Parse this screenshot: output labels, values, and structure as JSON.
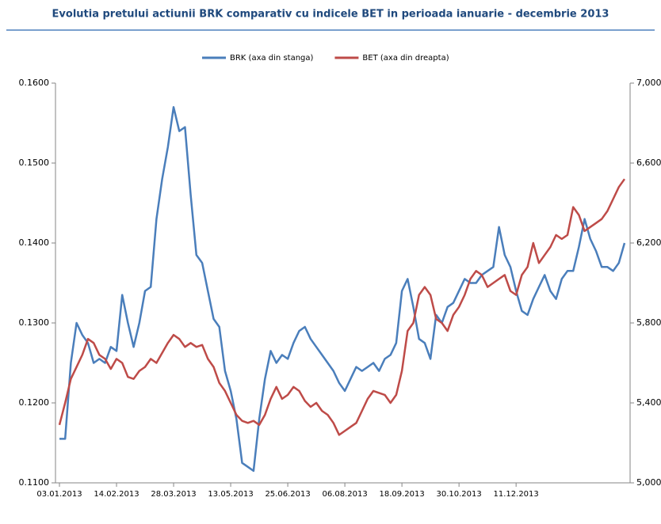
{
  "chart_data": {
    "type": "line",
    "title": "Evolutia pretului actiunii BRK comparativ cu indicele BET in perioada ianuarie - decembrie 2013",
    "categories": [
      "03.01.2013",
      null,
      null,
      null,
      null,
      null,
      null,
      null,
      null,
      null,
      "14.02.2013",
      null,
      null,
      null,
      null,
      null,
      null,
      null,
      null,
      null,
      "28.03.2013",
      null,
      null,
      null,
      null,
      null,
      null,
      null,
      null,
      null,
      "13.05.2013",
      null,
      null,
      null,
      null,
      null,
      null,
      null,
      null,
      null,
      "25.06.2013",
      null,
      null,
      null,
      null,
      null,
      null,
      null,
      null,
      null,
      "06.08.2013",
      null,
      null,
      null,
      null,
      null,
      null,
      null,
      null,
      null,
      "18.09.2013",
      null,
      null,
      null,
      null,
      null,
      null,
      null,
      null,
      null,
      "30.10.2013",
      null,
      null,
      null,
      null,
      null,
      null,
      null,
      null,
      null,
      "11.12.2013",
      null,
      null,
      null,
      null,
      null,
      null,
      null,
      null,
      null,
      null,
      null,
      null,
      null,
      null,
      null,
      null,
      null,
      null,
      null
    ],
    "series": [
      {
        "name": "BRK (axa din stanga)",
        "color": "#4a7ebb",
        "axis": "y",
        "values": [
          0.1155,
          0.1155,
          0.125,
          0.13,
          0.1285,
          0.1275,
          0.125,
          0.1255,
          0.125,
          0.127,
          0.1265,
          0.1335,
          0.13,
          0.127,
          0.13,
          0.134,
          0.1345,
          0.143,
          0.148,
          0.152,
          0.157,
          0.154,
          0.1545,
          0.146,
          0.1385,
          0.1375,
          0.134,
          0.1305,
          0.1295,
          0.124,
          0.1215,
          0.118,
          0.1125,
          0.112,
          0.1115,
          0.118,
          0.123,
          0.1265,
          0.125,
          0.126,
          0.1255,
          0.1275,
          0.129,
          0.1295,
          0.128,
          0.127,
          0.126,
          0.125,
          0.124,
          0.1225,
          0.1215,
          0.123,
          0.1245,
          0.124,
          0.1245,
          0.125,
          0.124,
          0.1255,
          0.126,
          0.1275,
          0.134,
          0.1355,
          0.132,
          0.128,
          0.1275,
          0.1255,
          0.131,
          0.13,
          0.132,
          0.1325,
          0.134,
          0.1355,
          0.135,
          0.135,
          0.136,
          0.1365,
          0.137,
          0.142,
          0.1385,
          0.137,
          0.134,
          0.1315,
          0.131,
          0.133,
          0.1345,
          0.136,
          0.134,
          0.133,
          0.1355,
          0.1365,
          0.1365,
          0.1395,
          0.143,
          0.1405,
          0.139,
          0.137,
          0.137,
          0.1365,
          0.1375,
          0.14
        ]
      },
      {
        "name": "BET (axa din dreapta)",
        "color": "#be4b48",
        "axis": "y2",
        "values": [
          5290,
          5400,
          5520,
          5580,
          5640,
          5720,
          5700,
          5640,
          5620,
          5570,
          5620,
          5600,
          5530,
          5520,
          5560,
          5580,
          5620,
          5600,
          5650,
          5700,
          5740,
          5720,
          5680,
          5700,
          5680,
          5690,
          5620,
          5580,
          5500,
          5460,
          5400,
          5340,
          5310,
          5300,
          5310,
          5290,
          5340,
          5420,
          5480,
          5420,
          5440,
          5480,
          5460,
          5410,
          5380,
          5400,
          5360,
          5340,
          5300,
          5240,
          5260,
          5280,
          5300,
          5360,
          5420,
          5460,
          5450,
          5440,
          5400,
          5440,
          5560,
          5760,
          5800,
          5940,
          5980,
          5940,
          5820,
          5800,
          5760,
          5840,
          5880,
          5940,
          6020,
          6060,
          6040,
          5980,
          6000,
          6020,
          6040,
          5960,
          5940,
          6040,
          6080,
          6200,
          6100,
          6140,
          6180,
          6240,
          6220,
          6240,
          6380,
          6340,
          6260,
          6280,
          6300,
          6320,
          6360,
          6420,
          6480,
          6520
        ]
      }
    ],
    "ylim": [
      0.11,
      0.16
    ],
    "yticks": [
      {
        "value": 0.11,
        "label": "0.1100"
      },
      {
        "value": 0.12,
        "label": "0.1200"
      },
      {
        "value": 0.13,
        "label": "0.1300"
      },
      {
        "value": 0.14,
        "label": "0.1400"
      },
      {
        "value": 0.15,
        "label": "0.1500"
      },
      {
        "value": 0.16,
        "label": "0.1600"
      }
    ],
    "y2lim": [
      5000,
      7000
    ],
    "y2ticks": [
      {
        "value": 5000,
        "label": "5,000"
      },
      {
        "value": 5400,
        "label": "5,400"
      },
      {
        "value": 5800,
        "label": "5,800"
      },
      {
        "value": 6200,
        "label": "6,200"
      },
      {
        "value": 6600,
        "label": "6,600"
      },
      {
        "value": 7000,
        "label": "7,000"
      }
    ],
    "grid": false,
    "legend": "top"
  }
}
